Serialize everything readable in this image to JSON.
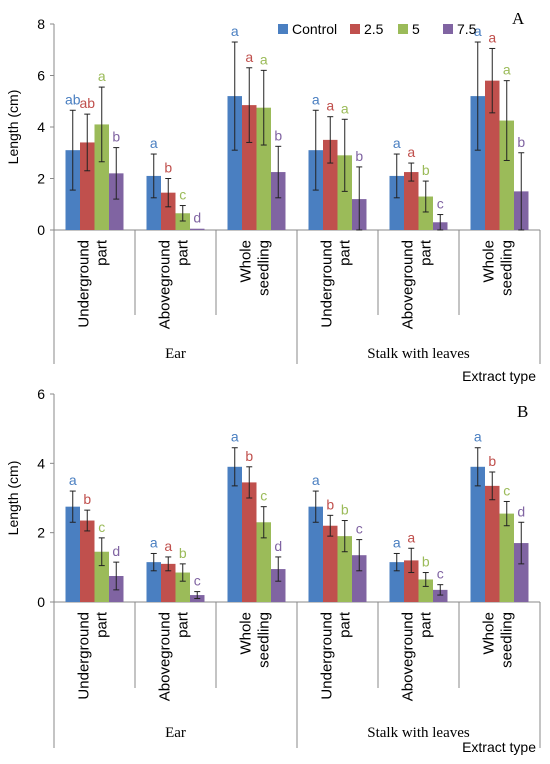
{
  "colors": {
    "Control": "#4a7fc1",
    "2.5": "#c0504d",
    "5": "#9bbb59",
    "7.5": "#8064a2",
    "axis": "#888888",
    "text": "#000000"
  },
  "chart_data": [
    {
      "type": "bar",
      "panel_label": "A",
      "ylabel": "Length (cm)",
      "xlabel": "Extract type",
      "ylim": [
        0,
        8
      ],
      "yticks": [
        0,
        2,
        4,
        6,
        8
      ],
      "grid": false,
      "legend": {
        "placement": "top",
        "entries": [
          "Control",
          "2.5",
          "5",
          "7.5"
        ]
      },
      "groups": [
        "Ear",
        "Stalk with leaves"
      ],
      "categories": [
        {
          "line1": "Underground",
          "line2": "part",
          "group": "Ear"
        },
        {
          "line1": "Aboveground",
          "line2": "part",
          "group": "Ear"
        },
        {
          "line1": "Whole",
          "line2": "seedling",
          "group": "Ear"
        },
        {
          "line1": "Underground",
          "line2": "part",
          "group": "Stalk with leaves"
        },
        {
          "line1": "Aboveground",
          "line2": "part",
          "group": "Stalk with leaves"
        },
        {
          "line1": "Whole",
          "line2": "seedling",
          "group": "Stalk with leaves"
        }
      ],
      "series": [
        {
          "name": "Control",
          "values": [
            3.1,
            2.1,
            5.2,
            3.1,
            2.1,
            5.2
          ],
          "errors": [
            1.55,
            0.85,
            2.1,
            1.55,
            0.85,
            2.1
          ],
          "labels": [
            "ab",
            "a",
            "a",
            "a",
            "a",
            "a"
          ]
        },
        {
          "name": "2.5",
          "values": [
            3.4,
            1.45,
            4.85,
            3.5,
            2.25,
            5.8
          ],
          "errors": [
            1.1,
            0.55,
            1.45,
            0.9,
            0.35,
            1.25
          ],
          "labels": [
            "ab",
            "b",
            "a",
            "a",
            "a",
            "a"
          ]
        },
        {
          "name": "5",
          "values": [
            4.1,
            0.65,
            4.75,
            2.9,
            1.3,
            4.25
          ],
          "errors": [
            1.45,
            0.3,
            1.45,
            1.4,
            0.6,
            1.55
          ],
          "labels": [
            "a",
            "c",
            "a",
            "a",
            "b",
            "a"
          ]
        },
        {
          "name": "7.5",
          "values": [
            2.2,
            0.05,
            2.25,
            1.2,
            0.3,
            1.5
          ],
          "errors": [
            1.0,
            0.0,
            1.0,
            1.25,
            0.3,
            1.5
          ],
          "labels": [
            "b",
            "d",
            "b",
            "b",
            "c",
            "b"
          ]
        }
      ]
    },
    {
      "type": "bar",
      "panel_label": "B",
      "ylabel": "Length (cm)",
      "xlabel": "Extract type",
      "ylim": [
        0,
        6
      ],
      "yticks": [
        0,
        2,
        4,
        6
      ],
      "grid": false,
      "groups": [
        "Ear",
        "Stalk with leaves"
      ],
      "categories": [
        {
          "line1": "Underground",
          "line2": "part",
          "group": "Ear"
        },
        {
          "line1": "Aboveground",
          "line2": "part",
          "group": "Ear"
        },
        {
          "line1": "Whole",
          "line2": "seedling",
          "group": "Ear"
        },
        {
          "line1": "Underground",
          "line2": "part",
          "group": "Stalk with leaves"
        },
        {
          "line1": "Aboveground",
          "line2": "part",
          "group": "Stalk with leaves"
        },
        {
          "line1": "Whole",
          "line2": "seedling",
          "group": "Stalk with leaves"
        }
      ],
      "series": [
        {
          "name": "Control",
          "values": [
            2.75,
            1.15,
            3.9,
            2.75,
            1.15,
            3.9
          ],
          "errors": [
            0.45,
            0.25,
            0.55,
            0.45,
            0.25,
            0.55
          ],
          "labels": [
            "a",
            "a",
            "a",
            "a",
            "a",
            "a"
          ]
        },
        {
          "name": "2.5",
          "values": [
            2.35,
            1.1,
            3.45,
            2.2,
            1.2,
            3.35
          ],
          "errors": [
            0.3,
            0.2,
            0.45,
            0.3,
            0.35,
            0.4
          ],
          "labels": [
            "b",
            "a",
            "b",
            "b",
            "a",
            "b"
          ]
        },
        {
          "name": "5",
          "values": [
            1.45,
            0.85,
            2.3,
            1.9,
            0.65,
            2.55
          ],
          "errors": [
            0.4,
            0.25,
            0.45,
            0.45,
            0.2,
            0.35
          ],
          "labels": [
            "c",
            "b",
            "c",
            "b",
            "b",
            "c"
          ]
        },
        {
          "name": "7.5",
          "values": [
            0.75,
            0.2,
            0.95,
            1.35,
            0.35,
            1.7
          ],
          "errors": [
            0.4,
            0.1,
            0.35,
            0.45,
            0.15,
            0.6
          ],
          "labels": [
            "d",
            "c",
            "d",
            "c",
            "c",
            "d"
          ]
        }
      ]
    }
  ]
}
